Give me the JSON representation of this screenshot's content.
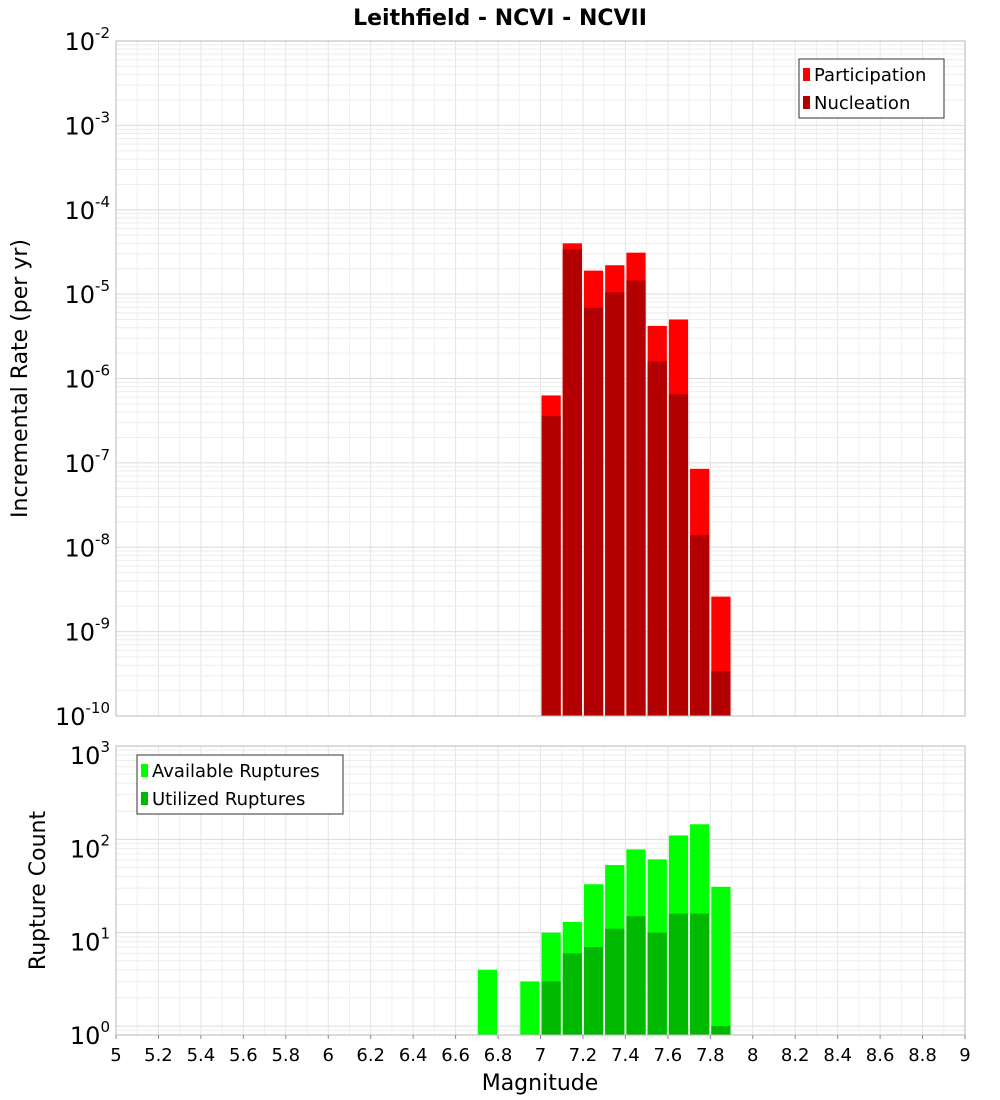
{
  "title": "Leithfield - NCVI - NCVII",
  "xlabel": "Magnitude",
  "chart_data": [
    {
      "type": "bar",
      "panel": "top",
      "title": "Leithfield - NCVI - NCVII",
      "xlabel": "Magnitude",
      "ylabel": "Incremental Rate (per yr)",
      "yscale": "log",
      "xlim": [
        5,
        9
      ],
      "ylim": [
        1e-10,
        0.01
      ],
      "x_ticks": [
        "5",
        "5.2",
        "5.4",
        "5.6",
        "5.8",
        "6",
        "6.2",
        "6.4",
        "6.6",
        "6.8",
        "7",
        "7.2",
        "7.4",
        "7.6",
        "7.8",
        "8",
        "8.2",
        "8.4",
        "8.6",
        "8.8",
        "9"
      ],
      "y_ticks": [
        {
          "base": "10",
          "exp": "-10"
        },
        {
          "base": "10",
          "exp": "-9"
        },
        {
          "base": "10",
          "exp": "-8"
        },
        {
          "base": "10",
          "exp": "-7"
        },
        {
          "base": "10",
          "exp": "-6"
        },
        {
          "base": "10",
          "exp": "-5"
        },
        {
          "base": "10",
          "exp": "-4"
        },
        {
          "base": "10",
          "exp": "-3"
        },
        {
          "base": "10",
          "exp": "-2"
        }
      ],
      "grid": true,
      "legend_position": "top-right",
      "bar_width": 0.1,
      "series": [
        {
          "name": "Participation",
          "color": "#ff0000",
          "x": [
            7.05,
            7.15,
            7.25,
            7.35,
            7.45,
            7.55,
            7.65,
            7.75,
            7.85
          ],
          "values": [
            6.3e-07,
            4e-05,
            1.9e-05,
            2.2e-05,
            3.1e-05,
            4.2e-06,
            5e-06,
            8.5e-08,
            2.6e-09
          ]
        },
        {
          "name": "Nucleation",
          "color": "#b30000",
          "x": [
            7.05,
            7.15,
            7.25,
            7.35,
            7.45,
            7.55,
            7.65,
            7.75,
            7.85
          ],
          "values": [
            3.6e-07,
            3.4e-05,
            6.9e-06,
            1.05e-05,
            1.45e-05,
            1.6e-06,
            6.5e-07,
            1.4e-08,
            3.4e-10
          ]
        }
      ]
    },
    {
      "type": "bar",
      "panel": "bottom",
      "xlabel": "Magnitude",
      "ylabel": "Rupture Count",
      "yscale": "log",
      "xlim": [
        5,
        9
      ],
      "ylim": [
        0.8,
        1000
      ],
      "x_ticks": [
        "5",
        "5.2",
        "5.4",
        "5.6",
        "5.8",
        "6",
        "6.2",
        "6.4",
        "6.6",
        "6.8",
        "7",
        "7.2",
        "7.4",
        "7.6",
        "7.8",
        "8",
        "8.2",
        "8.4",
        "8.6",
        "8.8",
        "9"
      ],
      "y_ticks": [
        {
          "base": "10",
          "exp": "0"
        },
        {
          "base": "10",
          "exp": "1"
        },
        {
          "base": "10",
          "exp": "2"
        },
        {
          "base": "10",
          "exp": "3"
        }
      ],
      "grid": true,
      "legend_position": "top-left",
      "bar_width": 0.1,
      "series": [
        {
          "name": "Available Ruptures",
          "color": "#00ff00",
          "x": [
            6.75,
            6.95,
            7.05,
            7.15,
            7.25,
            7.35,
            7.45,
            7.55,
            7.65,
            7.75,
            7.85
          ],
          "values": [
            4,
            3,
            10,
            13,
            33,
            53,
            78,
            61,
            110,
            145,
            31
          ]
        },
        {
          "name": "Utilized Ruptures",
          "color": "#00b800",
          "x": [
            7.05,
            7.15,
            7.25,
            7.35,
            7.45,
            7.55,
            7.65,
            7.75,
            7.85
          ],
          "values": [
            3,
            6,
            7,
            11,
            15,
            10,
            16,
            16,
            1
          ]
        }
      ]
    }
  ]
}
